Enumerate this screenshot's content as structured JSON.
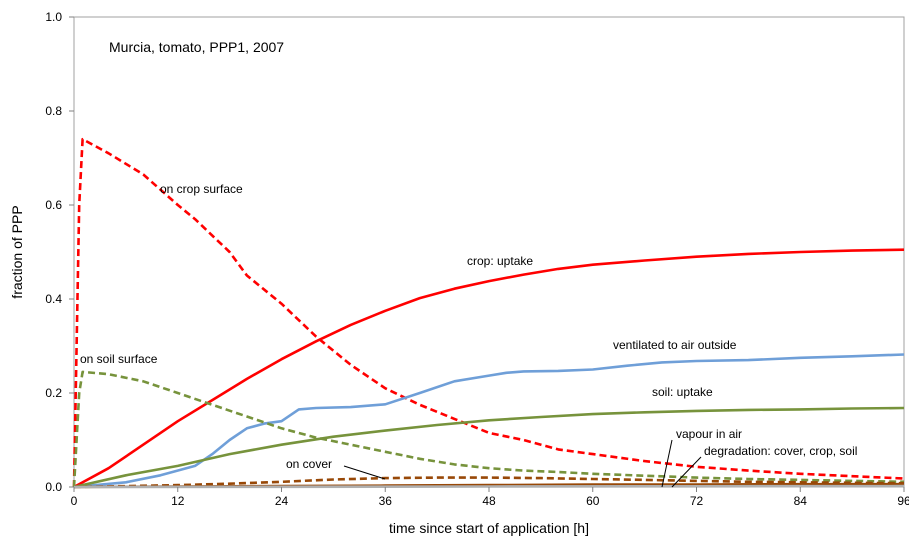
{
  "chart_data": {
    "type": "line",
    "title": "Murcia, tomato, PPP1, 2007",
    "xlabel": "time since start of application [h]",
    "ylabel": "fraction of PPP",
    "xlim": [
      0,
      96
    ],
    "ylim": [
      0,
      1.0
    ],
    "x_ticks": [
      "0",
      "12",
      "24",
      "36",
      "48",
      "60",
      "72",
      "84",
      "96"
    ],
    "y_ticks": [
      "0.0",
      "0.2",
      "0.4",
      "0.6",
      "0.8",
      "1.0"
    ],
    "grid": false,
    "annotations": [
      {
        "text": "on crop surface"
      },
      {
        "text": "crop: uptake"
      },
      {
        "text": "ventilated to air outside"
      },
      {
        "text": "on soil surface"
      },
      {
        "text": "soil: uptake"
      },
      {
        "text": "vapour in air"
      },
      {
        "text": "degradation: cover, crop, soil"
      },
      {
        "text": "on cover"
      }
    ],
    "series": [
      {
        "color": "#ff0000",
        "dash": true,
        "points": [
          [
            0,
            0
          ],
          [
            0.3,
            0.3
          ],
          [
            0.6,
            0.6
          ],
          [
            1.0,
            0.74
          ],
          [
            4,
            0.71
          ],
          [
            8,
            0.665
          ],
          [
            12,
            0.6
          ],
          [
            14,
            0.57
          ],
          [
            18,
            0.5
          ],
          [
            20,
            0.45
          ],
          [
            24,
            0.39
          ],
          [
            28,
            0.32
          ],
          [
            32,
            0.26
          ],
          [
            36,
            0.21
          ],
          [
            40,
            0.175
          ],
          [
            44,
            0.145
          ],
          [
            48,
            0.115
          ],
          [
            52,
            0.1
          ],
          [
            56,
            0.08
          ],
          [
            60,
            0.07
          ],
          [
            66,
            0.055
          ],
          [
            72,
            0.043
          ],
          [
            78,
            0.035
          ],
          [
            84,
            0.028
          ],
          [
            90,
            0.023
          ],
          [
            96,
            0.018
          ]
        ]
      },
      {
        "color": "#ff0000",
        "dash": false,
        "points": [
          [
            0,
            0
          ],
          [
            4,
            0.04
          ],
          [
            8,
            0.09
          ],
          [
            12,
            0.14
          ],
          [
            16,
            0.185
          ],
          [
            20,
            0.23
          ],
          [
            24,
            0.272
          ],
          [
            28,
            0.31
          ],
          [
            32,
            0.345
          ],
          [
            36,
            0.375
          ],
          [
            40,
            0.402
          ],
          [
            44,
            0.422
          ],
          [
            48,
            0.438
          ],
          [
            52,
            0.452
          ],
          [
            56,
            0.464
          ],
          [
            60,
            0.473
          ],
          [
            66,
            0.482
          ],
          [
            72,
            0.49
          ],
          [
            78,
            0.496
          ],
          [
            84,
            0.5
          ],
          [
            90,
            0.503
          ],
          [
            96,
            0.505
          ]
        ]
      },
      {
        "color": "#6f9fd8",
        "dash": false,
        "points": [
          [
            0,
            0
          ],
          [
            6,
            0.01
          ],
          [
            10,
            0.025
          ],
          [
            14,
            0.045
          ],
          [
            16,
            0.07
          ],
          [
            18,
            0.1
          ],
          [
            20,
            0.125
          ],
          [
            22,
            0.135
          ],
          [
            24,
            0.14
          ],
          [
            26,
            0.165
          ],
          [
            28,
            0.168
          ],
          [
            32,
            0.17
          ],
          [
            36,
            0.176
          ],
          [
            40,
            0.2
          ],
          [
            44,
            0.225
          ],
          [
            48,
            0.237
          ],
          [
            50,
            0.243
          ],
          [
            52,
            0.246
          ],
          [
            56,
            0.247
          ],
          [
            60,
            0.25
          ],
          [
            64,
            0.258
          ],
          [
            68,
            0.265
          ],
          [
            72,
            0.268
          ],
          [
            78,
            0.27
          ],
          [
            84,
            0.275
          ],
          [
            90,
            0.278
          ],
          [
            96,
            0.282
          ]
        ]
      },
      {
        "color": "#77933c",
        "dash": true,
        "points": [
          [
            0,
            0
          ],
          [
            0.3,
            0.1
          ],
          [
            0.6,
            0.2
          ],
          [
            1,
            0.245
          ],
          [
            4,
            0.24
          ],
          [
            8,
            0.225
          ],
          [
            12,
            0.2
          ],
          [
            16,
            0.175
          ],
          [
            20,
            0.15
          ],
          [
            24,
            0.125
          ],
          [
            28,
            0.105
          ],
          [
            32,
            0.09
          ],
          [
            36,
            0.075
          ],
          [
            40,
            0.06
          ],
          [
            44,
            0.048
          ],
          [
            48,
            0.04
          ],
          [
            52,
            0.035
          ],
          [
            56,
            0.032
          ],
          [
            60,
            0.028
          ],
          [
            66,
            0.024
          ],
          [
            72,
            0.02
          ],
          [
            78,
            0.017
          ],
          [
            84,
            0.015
          ],
          [
            90,
            0.013
          ],
          [
            96,
            0.011
          ]
        ]
      },
      {
        "color": "#77933c",
        "dash": false,
        "points": [
          [
            0,
            0
          ],
          [
            6,
            0.025
          ],
          [
            12,
            0.045
          ],
          [
            18,
            0.07
          ],
          [
            24,
            0.09
          ],
          [
            30,
            0.107
          ],
          [
            36,
            0.12
          ],
          [
            42,
            0.132
          ],
          [
            48,
            0.142
          ],
          [
            54,
            0.149
          ],
          [
            60,
            0.155
          ],
          [
            66,
            0.159
          ],
          [
            72,
            0.162
          ],
          [
            78,
            0.164
          ],
          [
            84,
            0.165
          ],
          [
            90,
            0.167
          ],
          [
            96,
            0.168
          ]
        ]
      },
      {
        "color": "#984807",
        "dash": true,
        "points": [
          [
            0,
            0
          ],
          [
            6,
            0.002
          ],
          [
            12,
            0.004
          ],
          [
            18,
            0.007
          ],
          [
            24,
            0.011
          ],
          [
            30,
            0.016
          ],
          [
            36,
            0.019
          ],
          [
            42,
            0.02
          ],
          [
            48,
            0.02
          ],
          [
            54,
            0.019
          ],
          [
            60,
            0.017
          ],
          [
            66,
            0.015
          ],
          [
            72,
            0.013
          ],
          [
            78,
            0.011
          ],
          [
            84,
            0.01
          ],
          [
            90,
            0.009
          ],
          [
            96,
            0.008
          ]
        ]
      },
      {
        "color": "#984807",
        "dash": false,
        "points": [
          [
            0,
            0
          ],
          [
            12,
            0.001
          ],
          [
            24,
            0.002
          ],
          [
            36,
            0.003
          ],
          [
            48,
            0.004
          ],
          [
            60,
            0.005
          ],
          [
            72,
            0.005
          ],
          [
            84,
            0.006
          ],
          [
            96,
            0.006
          ]
        ]
      },
      {
        "color": "#b0b0b0",
        "dash": false,
        "points": [
          [
            0,
            0
          ],
          [
            24,
            0.0005
          ],
          [
            48,
            0.001
          ],
          [
            72,
            0.0015
          ],
          [
            96,
            0.002
          ]
        ]
      }
    ]
  }
}
